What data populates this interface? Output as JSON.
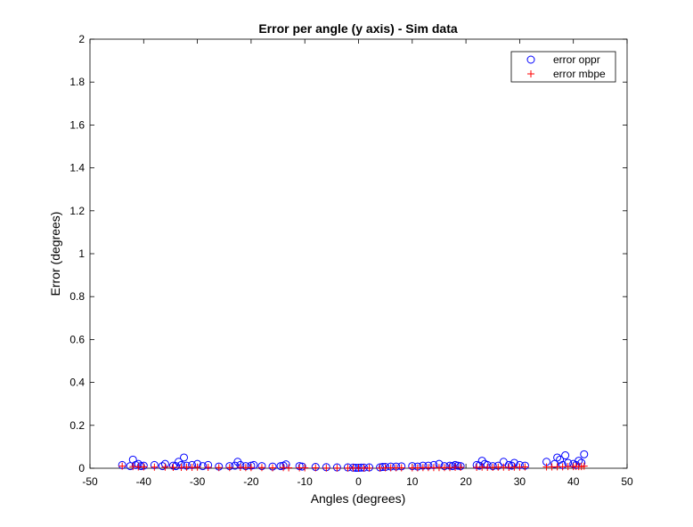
{
  "chart_data": {
    "type": "scatter",
    "title": "Error per angle (y axis)  - Sim data",
    "xlabel": "Angles (degrees)",
    "ylabel": "Error (degrees)",
    "xlim": [
      -50,
      50
    ],
    "ylim": [
      0,
      2
    ],
    "xticks": [
      "-50",
      "-40",
      "-30",
      "-20",
      "-10",
      "0",
      "10",
      "20",
      "30",
      "40",
      "50"
    ],
    "yticks": [
      "0",
      "0.2",
      "0.4",
      "0.6",
      "0.8",
      "1",
      "1.2",
      "1.4",
      "1.6",
      "1.8",
      "2"
    ],
    "grid": false,
    "legend_position": "top-right",
    "series": [
      {
        "name": "error oppr",
        "marker": "circle",
        "color": "#0000ff",
        "x": [
          -44,
          -42.5,
          -42,
          -41.5,
          -41,
          -40.5,
          -40,
          -38,
          -36.5,
          -36,
          -34.5,
          -34,
          -33.5,
          -33,
          -32.5,
          -32,
          -31,
          -30,
          -29,
          -28,
          -26,
          -24,
          -23,
          -22.5,
          -22,
          -21,
          -20,
          -19.5,
          -18,
          -16,
          -14.5,
          -14,
          -13.5,
          -11,
          -10.5,
          -8,
          -6,
          -4,
          -2,
          -1,
          -0.5,
          0,
          0.5,
          1,
          2,
          4,
          4.5,
          5,
          6,
          7,
          8,
          10,
          11,
          12,
          13,
          14,
          15,
          16,
          17,
          17.5,
          18,
          18.5,
          19,
          22,
          22.5,
          23,
          23.5,
          24,
          25,
          26,
          27,
          28,
          28.5,
          29,
          30,
          31,
          35,
          36.5,
          37,
          37.5,
          38,
          38.5,
          39,
          40,
          40.5,
          41,
          41.5,
          42
        ],
        "y": [
          0.015,
          0.01,
          0.04,
          0.015,
          0.02,
          0.01,
          0.012,
          0.015,
          0.01,
          0.02,
          0.012,
          0.01,
          0.03,
          0.015,
          0.05,
          0.012,
          0.015,
          0.02,
          0.01,
          0.015,
          0.008,
          0.01,
          0.012,
          0.03,
          0.015,
          0.01,
          0.012,
          0.015,
          0.01,
          0.008,
          0.01,
          0.012,
          0.018,
          0.01,
          0.008,
          0.006,
          0.005,
          0.004,
          0.004,
          0.003,
          0.002,
          0.002,
          0.003,
          0.003,
          0.004,
          0.004,
          0.006,
          0.006,
          0.008,
          0.008,
          0.009,
          0.01,
          0.008,
          0.012,
          0.012,
          0.015,
          0.02,
          0.01,
          0.012,
          0.01,
          0.015,
          0.012,
          0.01,
          0.015,
          0.012,
          0.035,
          0.02,
          0.015,
          0.01,
          0.012,
          0.03,
          0.015,
          0.012,
          0.025,
          0.015,
          0.012,
          0.03,
          0.02,
          0.05,
          0.04,
          0.015,
          0.06,
          0.025,
          0.02,
          0.015,
          0.035,
          0.025,
          0.065
        ]
      },
      {
        "name": "error mbpe",
        "marker": "plus",
        "color": "#ff0000",
        "x": [
          -44,
          -42,
          -41,
          -40,
          -38,
          -36,
          -34.5,
          -33,
          -32,
          -31,
          -30,
          -28,
          -26,
          -24,
          -22,
          -21,
          -20,
          -18,
          -16,
          -14,
          -13,
          -11,
          -10,
          -8,
          -6,
          -4,
          -2,
          -1,
          0,
          1,
          2,
          4,
          5,
          6,
          7,
          8,
          10,
          11,
          12,
          13,
          14,
          15,
          16,
          17,
          18,
          19,
          22,
          23,
          24,
          25,
          26,
          27,
          28,
          29,
          30,
          31,
          35,
          36,
          37,
          38,
          39,
          40,
          40.5,
          41,
          41.5,
          42
        ],
        "y": [
          0.01,
          0.008,
          0.006,
          0.006,
          0.005,
          0.005,
          0.004,
          0.004,
          0.005,
          0.004,
          0.005,
          0.004,
          0.003,
          0.003,
          0.004,
          0.003,
          0.003,
          0.003,
          0.002,
          0.003,
          0.002,
          0.002,
          0.002,
          0.002,
          0.001,
          0.001,
          0.001,
          0.001,
          0.001,
          0.001,
          0.001,
          0.001,
          0.002,
          0.002,
          0.002,
          0.002,
          0.002,
          0.002,
          0.003,
          0.003,
          0.003,
          0.003,
          0.003,
          0.003,
          0.004,
          0.004,
          0.004,
          0.005,
          0.004,
          0.004,
          0.005,
          0.005,
          0.004,
          0.005,
          0.005,
          0.006,
          0.006,
          0.006,
          0.007,
          0.007,
          0.008,
          0.008,
          0.009,
          0.008,
          0.008,
          0.01
        ]
      }
    ]
  }
}
